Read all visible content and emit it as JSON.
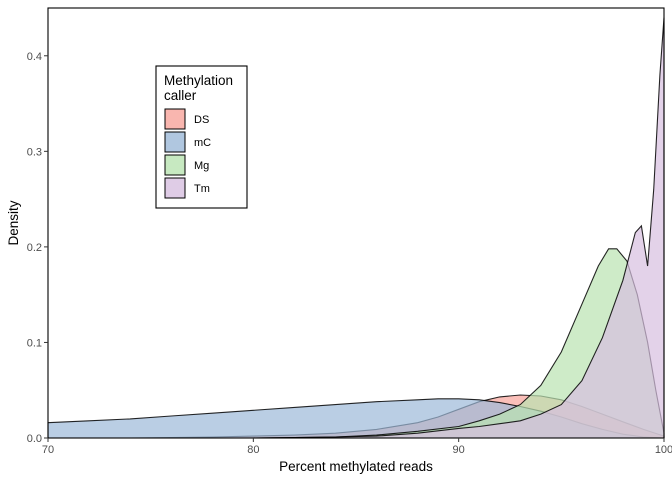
{
  "chart_data": {
    "type": "area",
    "subtype": "density",
    "xlabel": "Percent methylated reads",
    "ylabel": "Density",
    "xlim": [
      70,
      100
    ],
    "ylim": [
      0,
      0.45
    ],
    "x_ticks": [
      70,
      80,
      90,
      100
    ],
    "y_ticks": [
      0.0,
      0.1,
      0.2,
      0.3,
      0.4
    ],
    "x_tick_labels": [
      "70",
      "80",
      "90",
      "100"
    ],
    "y_tick_labels": [
      "0.0",
      "0.1",
      "0.2",
      "0.3",
      "0.4"
    ],
    "grid": false,
    "legend": {
      "title_lines": [
        "Methylation",
        "caller"
      ],
      "placement": "top-left"
    },
    "series": [
      {
        "name": "DS",
        "color": "#f8a49b",
        "points": [
          [
            70,
            0.0
          ],
          [
            74,
            0.0
          ],
          [
            78,
            0.001
          ],
          [
            80,
            0.002
          ],
          [
            82,
            0.003
          ],
          [
            84,
            0.005
          ],
          [
            86,
            0.009
          ],
          [
            88,
            0.016
          ],
          [
            89,
            0.022
          ],
          [
            90,
            0.03
          ],
          [
            91,
            0.038
          ],
          [
            92,
            0.043
          ],
          [
            93,
            0.045
          ],
          [
            94,
            0.044
          ],
          [
            95,
            0.04
          ],
          [
            96,
            0.033
          ],
          [
            97,
            0.025
          ],
          [
            98,
            0.017
          ],
          [
            99,
            0.009
          ],
          [
            100,
            0.002
          ]
        ]
      },
      {
        "name": "mC",
        "color": "#9cb9d8",
        "points": [
          [
            70,
            0.016
          ],
          [
            72,
            0.018
          ],
          [
            74,
            0.02
          ],
          [
            76,
            0.023
          ],
          [
            78,
            0.026
          ],
          [
            80,
            0.029
          ],
          [
            82,
            0.032
          ],
          [
            84,
            0.035
          ],
          [
            86,
            0.038
          ],
          [
            88,
            0.04
          ],
          [
            89,
            0.041
          ],
          [
            90,
            0.041
          ],
          [
            91,
            0.04
          ],
          [
            92,
            0.037
          ],
          [
            93,
            0.033
          ],
          [
            94,
            0.028
          ],
          [
            95,
            0.022
          ],
          [
            96,
            0.015
          ],
          [
            97,
            0.009
          ],
          [
            98,
            0.004
          ],
          [
            99,
            0.001
          ],
          [
            100,
            0.0
          ]
        ]
      },
      {
        "name": "Mg",
        "color": "#b9e3b1",
        "points": [
          [
            70,
            0.0
          ],
          [
            80,
            0.0
          ],
          [
            84,
            0.001
          ],
          [
            86,
            0.003
          ],
          [
            88,
            0.007
          ],
          [
            90,
            0.012
          ],
          [
            91,
            0.018
          ],
          [
            92,
            0.025
          ],
          [
            93,
            0.035
          ],
          [
            94,
            0.055
          ],
          [
            95,
            0.09
          ],
          [
            96,
            0.14
          ],
          [
            96.8,
            0.18
          ],
          [
            97.3,
            0.198
          ],
          [
            97.7,
            0.198
          ],
          [
            98.2,
            0.185
          ],
          [
            98.7,
            0.15
          ],
          [
            99.2,
            0.1
          ],
          [
            99.6,
            0.05
          ],
          [
            100,
            0.005
          ]
        ]
      },
      {
        "name": "Tm",
        "color": "#d7bfe0",
        "points": [
          [
            70,
            0.0
          ],
          [
            80,
            0.0
          ],
          [
            84,
            0.001
          ],
          [
            86,
            0.002
          ],
          [
            88,
            0.005
          ],
          [
            90,
            0.01
          ],
          [
            91,
            0.012
          ],
          [
            92,
            0.015
          ],
          [
            93,
            0.018
          ],
          [
            94,
            0.025
          ],
          [
            95,
            0.035
          ],
          [
            96,
            0.06
          ],
          [
            97,
            0.105
          ],
          [
            98,
            0.165
          ],
          [
            98.6,
            0.215
          ],
          [
            98.9,
            0.222
          ],
          [
            99.2,
            0.18
          ],
          [
            99.5,
            0.26
          ],
          [
            99.8,
            0.38
          ],
          [
            100,
            0.44
          ]
        ]
      }
    ]
  }
}
